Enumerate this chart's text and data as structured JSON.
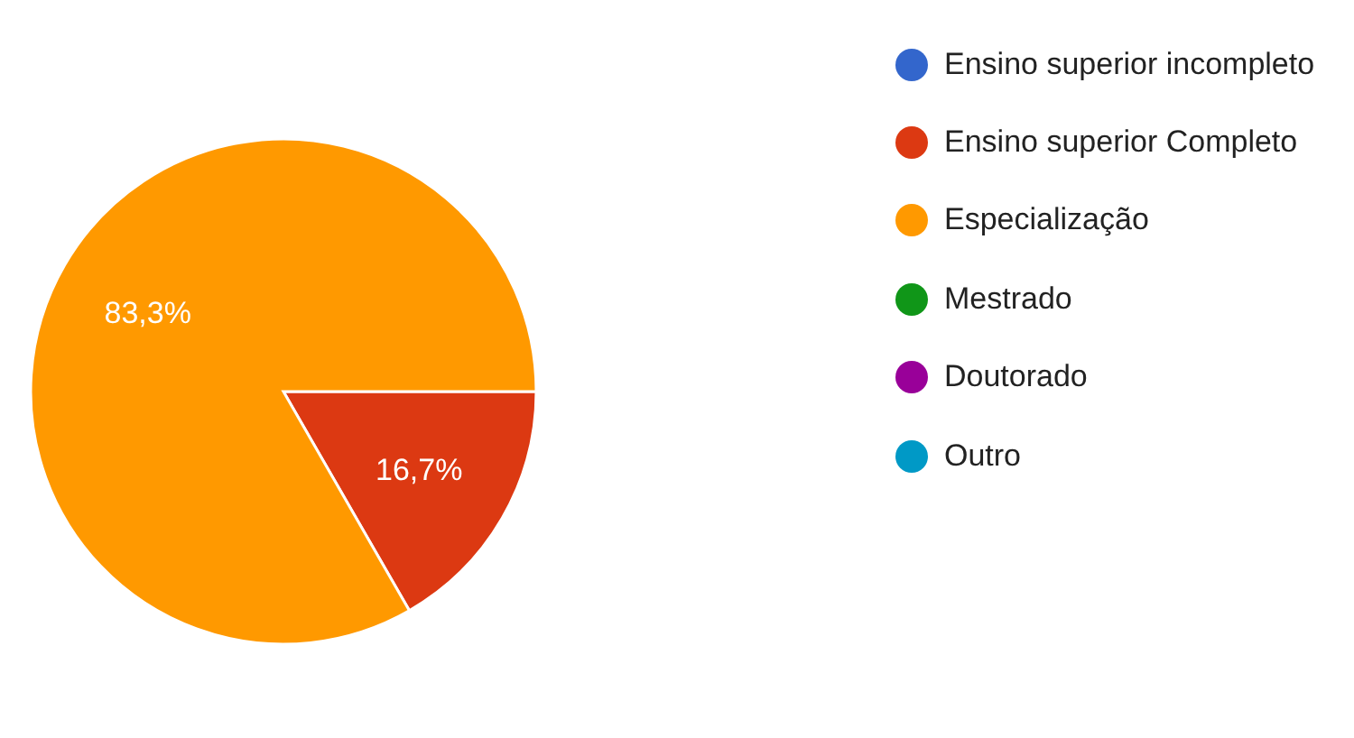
{
  "chart_data": {
    "type": "pie",
    "categories": [
      "Ensino superior incompleto",
      "Ensino superior Completo",
      "Especialização",
      "Mestrado",
      "Doutorado",
      "Outro"
    ],
    "values": [
      0,
      16.7,
      83.3,
      0,
      0,
      0
    ],
    "value_labels": [
      null,
      "16,7%",
      "83,3%",
      null,
      null,
      null
    ],
    "colors": [
      "#3366cc",
      "#dc3912",
      "#ff9900",
      "#109618",
      "#990099",
      "#0099c6"
    ],
    "legend": "right"
  }
}
